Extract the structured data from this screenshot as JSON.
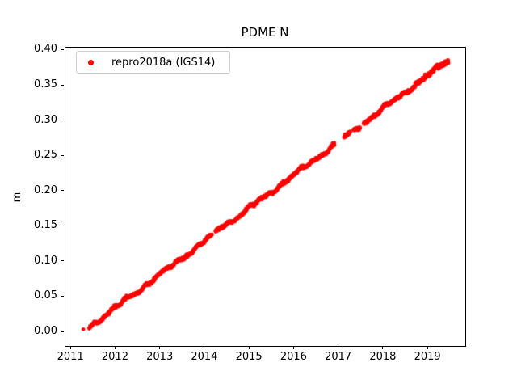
{
  "chart_data": {
    "type": "scatter",
    "title": "PDME N",
    "xlabel": "",
    "ylabel": "m",
    "grid": false,
    "legend_position": "upper left",
    "background_color": "#ffffff",
    "axis_color": "#000000",
    "legend_border_color": "#cccccc",
    "xlim": [
      2010.87,
      2019.83
    ],
    "ylim": [
      -0.0195,
      0.404
    ],
    "xticks": [
      {
        "value": 2011,
        "label": "2011"
      },
      {
        "value": 2012,
        "label": "2012"
      },
      {
        "value": 2013,
        "label": "2013"
      },
      {
        "value": 2014,
        "label": "2014"
      },
      {
        "value": 2015,
        "label": "2015"
      },
      {
        "value": 2016,
        "label": "2016"
      },
      {
        "value": 2017,
        "label": "2017"
      },
      {
        "value": 2018,
        "label": "2018"
      },
      {
        "value": 2019,
        "label": "2019"
      }
    ],
    "yticks": [
      {
        "value": 0.0,
        "label": "0.00"
      },
      {
        "value": 0.05,
        "label": "0.05"
      },
      {
        "value": 0.1,
        "label": "0.10"
      },
      {
        "value": 0.15,
        "label": "0.15"
      },
      {
        "value": 0.2,
        "label": "0.20"
      },
      {
        "value": 0.25,
        "label": "0.25"
      },
      {
        "value": 0.3,
        "label": "0.30"
      },
      {
        "value": 0.35,
        "label": "0.35"
      },
      {
        "value": 0.4,
        "label": "0.40"
      }
    ],
    "series": [
      {
        "name": "repro2018a (IGS14)",
        "color": "#ff0000",
        "marker": "dot",
        "marker_radius_px": 2.3,
        "points_per_year": 280,
        "trend": {
          "ref_year": 2011.42,
          "ref_value": 0.006,
          "slope_m_per_yr": 0.0471
        },
        "segments": [
          {
            "start": 2011.287,
            "end": 2011.29
          },
          {
            "start": 2011.42,
            "end": 2014.17
          },
          {
            "start": 2014.25,
            "end": 2016.92
          },
          {
            "start": 2017.13,
            "end": 2017.27
          },
          {
            "start": 2017.34,
            "end": 2017.49
          },
          {
            "start": 2017.57,
            "end": 2019.47
          }
        ],
        "wiggles": [
          {
            "freq": 1.0,
            "amp": 0.0018,
            "phase": 0.8
          },
          {
            "freq": 2.6,
            "amp": 0.0012,
            "phase": 2.0
          },
          {
            "freq": 4.3,
            "amp": 0.001,
            "phase": 4.5
          }
        ],
        "bumps": [
          {
            "center": 2014.42,
            "width": 0.12,
            "amp": 0.004
          }
        ],
        "noise_sigma_m": 0.0009,
        "noise_boost": {
          "after_year": 2018.7,
          "factor": 1.6
        },
        "random_seed": 7,
        "sampled_points": [
          [
            2011.29,
            0.0
          ],
          [
            2011.5,
            0.01
          ],
          [
            2012.0,
            0.034
          ],
          [
            2012.5,
            0.057
          ],
          [
            2013.0,
            0.08
          ],
          [
            2013.5,
            0.104
          ],
          [
            2014.0,
            0.127
          ],
          [
            2014.5,
            0.152
          ],
          [
            2015.0,
            0.175
          ],
          [
            2015.5,
            0.198
          ],
          [
            2016.0,
            0.222
          ],
          [
            2016.5,
            0.245
          ],
          [
            2016.9,
            0.264
          ],
          [
            2017.2,
            0.278
          ],
          [
            2017.4,
            0.288
          ],
          [
            2017.6,
            0.297
          ],
          [
            2018.0,
            0.315
          ],
          [
            2018.5,
            0.338
          ],
          [
            2019.0,
            0.362
          ],
          [
            2019.45,
            0.385
          ]
        ]
      }
    ]
  }
}
